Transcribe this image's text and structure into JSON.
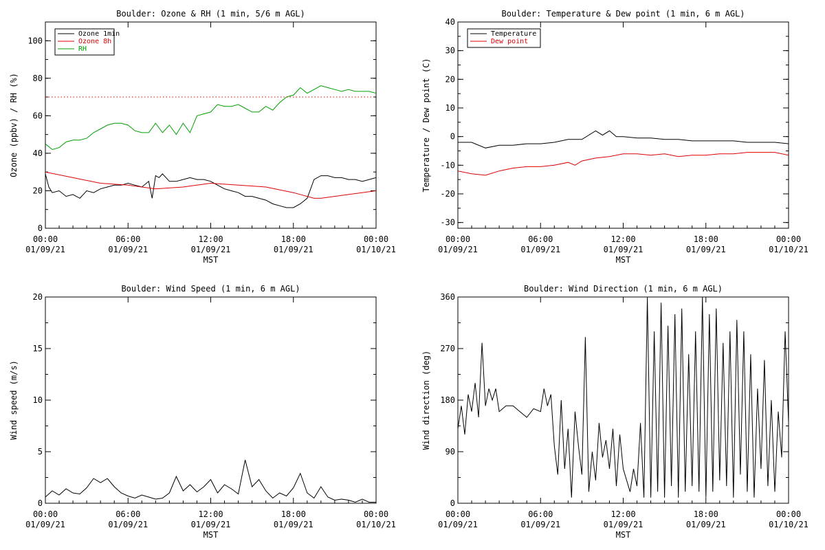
{
  "chart_data": [
    {
      "type": "line",
      "title": "Boulder: Ozone & RH (1 min, 5/6 m AGL)",
      "xlabel": "MST",
      "ylabel": "Ozone (ppbv) / RH (%)",
      "xlim": [
        "00:00 01/09/21",
        "00:00 01/10/21"
      ],
      "ylim": [
        0,
        110
      ],
      "x_ticks": [
        {
          "time": "00:00",
          "date": "01/09/21"
        },
        {
          "time": "06:00",
          "date": "01/09/21"
        },
        {
          "time": "12:00",
          "date": "01/09/21"
        },
        {
          "time": "18:00",
          "date": "01/09/21"
        },
        {
          "time": "00:00",
          "date": "01/10/21"
        }
      ],
      "y_ticks": [
        "0",
        "20",
        "40",
        "60",
        "80",
        "100"
      ],
      "grid": false,
      "legend_position": "top-left",
      "series": [
        {
          "name": "Ozone 1min",
          "color": "#000000",
          "x_hours": [
            0,
            0.25,
            0.5,
            1,
            1.5,
            2,
            2.5,
            3,
            3.5,
            4,
            4.5,
            5,
            5.5,
            6,
            6.5,
            7,
            7.5,
            7.75,
            8,
            8.25,
            8.5,
            9,
            9.5,
            10,
            10.5,
            11,
            11.5,
            12,
            12.5,
            13,
            13.5,
            14,
            14.5,
            15,
            15.5,
            16,
            16.5,
            17,
            17.5,
            18,
            18.5,
            19,
            19.5,
            20,
            20.5,
            21,
            21.5,
            22,
            22.5,
            23,
            23.5,
            24
          ],
          "y": [
            29,
            22,
            19,
            20,
            17,
            18,
            16,
            20,
            19,
            21,
            22,
            23,
            23,
            24,
            23,
            22,
            25,
            16,
            28,
            27,
            29,
            25,
            25,
            26,
            27,
            26,
            26,
            25,
            23,
            21,
            20,
            19,
            17,
            17,
            16,
            15,
            13,
            12,
            11,
            11,
            13,
            16,
            26,
            28,
            28,
            27,
            27,
            26,
            26,
            25,
            26,
            27
          ]
        },
        {
          "name": "Ozone 8h",
          "color": "#dd0000",
          "x_hours": [
            0,
            2,
            4,
            6,
            8,
            10,
            12,
            14,
            16,
            18,
            19.5,
            20,
            22,
            24
          ],
          "y": [
            30,
            27,
            24,
            23,
            21,
            22,
            24,
            23,
            22,
            19,
            16,
            16,
            18,
            20
          ]
        },
        {
          "name": "RH",
          "color": "#00a000",
          "x_hours": [
            0,
            0.5,
            1,
            1.5,
            2,
            2.5,
            3,
            3.5,
            4,
            4.5,
            5,
            5.5,
            6,
            6.5,
            7,
            7.5,
            8,
            8.5,
            9,
            9.5,
            10,
            10.5,
            11,
            11.5,
            12,
            12.5,
            13,
            13.5,
            14,
            14.5,
            15,
            15.5,
            16,
            16.5,
            17,
            17.5,
            18,
            18.5,
            19,
            19.5,
            20,
            20.5,
            21,
            21.5,
            22,
            22.5,
            23,
            23.5,
            24
          ],
          "y": [
            45,
            42,
            43,
            46,
            47,
            47,
            48,
            51,
            53,
            55,
            56,
            56,
            55,
            52,
            51,
            51,
            56,
            51,
            55,
            50,
            56,
            51,
            60,
            61,
            62,
            66,
            65,
            65,
            66,
            64,
            62,
            62,
            65,
            63,
            67,
            70,
            71,
            75,
            72,
            74,
            76,
            75,
            74,
            73,
            74,
            73,
            73,
            73,
            72
          ]
        },
        {
          "name": "",
          "color": "#dd0000",
          "style": "dotted",
          "x_hours": [
            0,
            24
          ],
          "y": [
            70,
            70
          ]
        }
      ]
    },
    {
      "type": "line",
      "title": "Boulder: Temperature & Dew point (1 min, 6 m AGL)",
      "xlabel": "MST",
      "ylabel": "Temperature / Dew point (C)",
      "xlim": [
        "00:00 01/09/21",
        "00:00 01/10/21"
      ],
      "ylim": [
        -32,
        40
      ],
      "x_ticks": [
        {
          "time": "00:00",
          "date": "01/09/21"
        },
        {
          "time": "06:00",
          "date": "01/09/21"
        },
        {
          "time": "12:00",
          "date": "01/09/21"
        },
        {
          "time": "18:00",
          "date": "01/09/21"
        },
        {
          "time": "00:00",
          "date": "01/10/21"
        }
      ],
      "y_ticks": [
        "-30",
        "-20",
        "-10",
        "0",
        "10",
        "20",
        "30",
        "40"
      ],
      "grid": false,
      "legend_position": "top-left",
      "series": [
        {
          "name": "Temperature",
          "color": "#000000",
          "x_hours": [
            0,
            1,
            2,
            3,
            4,
            5,
            6,
            7,
            8,
            9,
            10,
            10.5,
            11,
            11.5,
            12,
            13,
            14,
            15,
            16,
            17,
            18,
            19,
            20,
            21,
            22,
            23,
            24
          ],
          "y": [
            -2,
            -2,
            -4,
            -3,
            -3,
            -2.5,
            -2.5,
            -2,
            -1,
            -1,
            2,
            0.5,
            2,
            0,
            0,
            -0.5,
            -0.5,
            -1,
            -1,
            -1.5,
            -1.5,
            -1.5,
            -1.5,
            -2,
            -2,
            -2,
            -2.5
          ]
        },
        {
          "name": "Dew point",
          "color": "#dd0000",
          "x_hours": [
            0,
            1,
            2,
            3,
            4,
            5,
            6,
            7,
            8,
            8.5,
            9,
            10,
            11,
            12,
            13,
            14,
            15,
            16,
            17,
            18,
            19,
            20,
            21,
            22,
            23,
            24
          ],
          "y": [
            -12,
            -13,
            -13.5,
            -12,
            -11,
            -10.5,
            -10.5,
            -10,
            -9,
            -10,
            -8.5,
            -7.5,
            -7,
            -6,
            -6,
            -6.5,
            -6,
            -7,
            -6.5,
            -6.5,
            -6,
            -6,
            -5.5,
            -5.5,
            -5.5,
            -6.5
          ]
        }
      ]
    },
    {
      "type": "line",
      "title": "Boulder: Wind Speed (1 min, 6 m AGL)",
      "xlabel": "MST",
      "ylabel": "Wind speed (m/s)",
      "xlim": [
        "00:00 01/09/21",
        "00:00 01/10/21"
      ],
      "ylim": [
        0,
        20
      ],
      "x_ticks": [
        {
          "time": "00:00",
          "date": "01/09/21"
        },
        {
          "time": "06:00",
          "date": "01/09/21"
        },
        {
          "time": "12:00",
          "date": "01/09/21"
        },
        {
          "time": "18:00",
          "date": "01/09/21"
        },
        {
          "time": "00:00",
          "date": "01/10/21"
        }
      ],
      "y_ticks": [
        "0",
        "5",
        "10",
        "15",
        "20"
      ],
      "grid": false,
      "series": [
        {
          "name": "",
          "color": "#000000",
          "x_hours": [
            0,
            0.5,
            1,
            1.5,
            2,
            2.5,
            3,
            3.5,
            4,
            4.5,
            5,
            5.5,
            6,
            6.5,
            7,
            7.5,
            8,
            8.5,
            9,
            9.5,
            10,
            10.5,
            11,
            11.5,
            12,
            12.5,
            13,
            13.5,
            14,
            14.5,
            15,
            15.5,
            16,
            16.5,
            17,
            17.5,
            18,
            18.5,
            19,
            19.5,
            20,
            20.5,
            21,
            21.5,
            22,
            22.5,
            23,
            23.5,
            24
          ],
          "y": [
            0.6,
            1.2,
            0.8,
            1.4,
            1.0,
            0.9,
            1.5,
            2.4,
            2.0,
            2.4,
            1.6,
            1.0,
            0.7,
            0.5,
            0.8,
            0.6,
            0.4,
            0.5,
            1.0,
            2.6,
            1.2,
            1.8,
            1.1,
            1.6,
            2.3,
            1.0,
            1.8,
            1.4,
            0.9,
            4.2,
            1.6,
            2.3,
            1.2,
            0.5,
            1.0,
            0.7,
            1.5,
            2.9,
            1.0,
            0.5,
            1.6,
            0.6,
            0.3,
            0.4,
            0.3,
            0.1,
            0.4,
            0.1,
            0.1
          ]
        }
      ]
    },
    {
      "type": "line",
      "title": "Boulder: Wind Direction (1 min, 6 m AGL)",
      "xlabel": "MST",
      "ylabel": "Wind direction (deg)",
      "xlim": [
        "00:00 01/09/21",
        "00:00 01/10/21"
      ],
      "ylim": [
        0,
        360
      ],
      "x_ticks": [
        {
          "time": "00:00",
          "date": "01/09/21"
        },
        {
          "time": "06:00",
          "date": "01/09/21"
        },
        {
          "time": "12:00",
          "date": "01/09/21"
        },
        {
          "time": "18:00",
          "date": "01/09/21"
        },
        {
          "time": "00:00",
          "date": "01/10/21"
        }
      ],
      "y_ticks": [
        "0",
        "90",
        "180",
        "270",
        "360"
      ],
      "grid": false,
      "series": [
        {
          "name": "",
          "color": "#000000",
          "x_hours": [
            0,
            0.25,
            0.5,
            0.75,
            1,
            1.25,
            1.5,
            1.75,
            2,
            2.25,
            2.5,
            2.75,
            3,
            3.5,
            4,
            4.5,
            5,
            5.5,
            6,
            6.25,
            6.5,
            6.75,
            7,
            7.25,
            7.5,
            7.75,
            8,
            8.25,
            8.5,
            8.75,
            9,
            9.25,
            9.5,
            9.75,
            10,
            10.25,
            10.5,
            10.75,
            11,
            11.25,
            11.5,
            11.75,
            12,
            12.25,
            12.5,
            12.75,
            13,
            13.25,
            13.5,
            13.75,
            14,
            14.25,
            14.5,
            14.75,
            15,
            15.25,
            15.5,
            15.75,
            16,
            16.25,
            16.5,
            16.75,
            17,
            17.25,
            17.5,
            17.75,
            18,
            18.25,
            18.5,
            18.75,
            19,
            19.25,
            19.5,
            19.75,
            20,
            20.25,
            20.5,
            20.75,
            21,
            21.25,
            21.5,
            21.75,
            22,
            22.25,
            22.5,
            22.75,
            23,
            23.25,
            23.5,
            23.75,
            24
          ],
          "y": [
            130,
            170,
            120,
            190,
            160,
            210,
            150,
            280,
            170,
            200,
            180,
            200,
            160,
            170,
            170,
            160,
            150,
            165,
            160,
            200,
            170,
            190,
            100,
            50,
            180,
            60,
            130,
            10,
            160,
            100,
            50,
            290,
            20,
            90,
            40,
            140,
            80,
            110,
            60,
            130,
            30,
            120,
            60,
            40,
            20,
            60,
            30,
            140,
            10,
            360,
            10,
            300,
            20,
            350,
            10,
            310,
            30,
            330,
            10,
            340,
            20,
            260,
            30,
            300,
            20,
            360,
            10,
            330,
            20,
            340,
            40,
            280,
            30,
            300,
            10,
            320,
            50,
            300,
            20,
            260,
            10,
            200,
            60,
            250,
            30,
            180,
            20,
            160,
            80,
            300,
            140
          ]
        }
      ]
    }
  ]
}
